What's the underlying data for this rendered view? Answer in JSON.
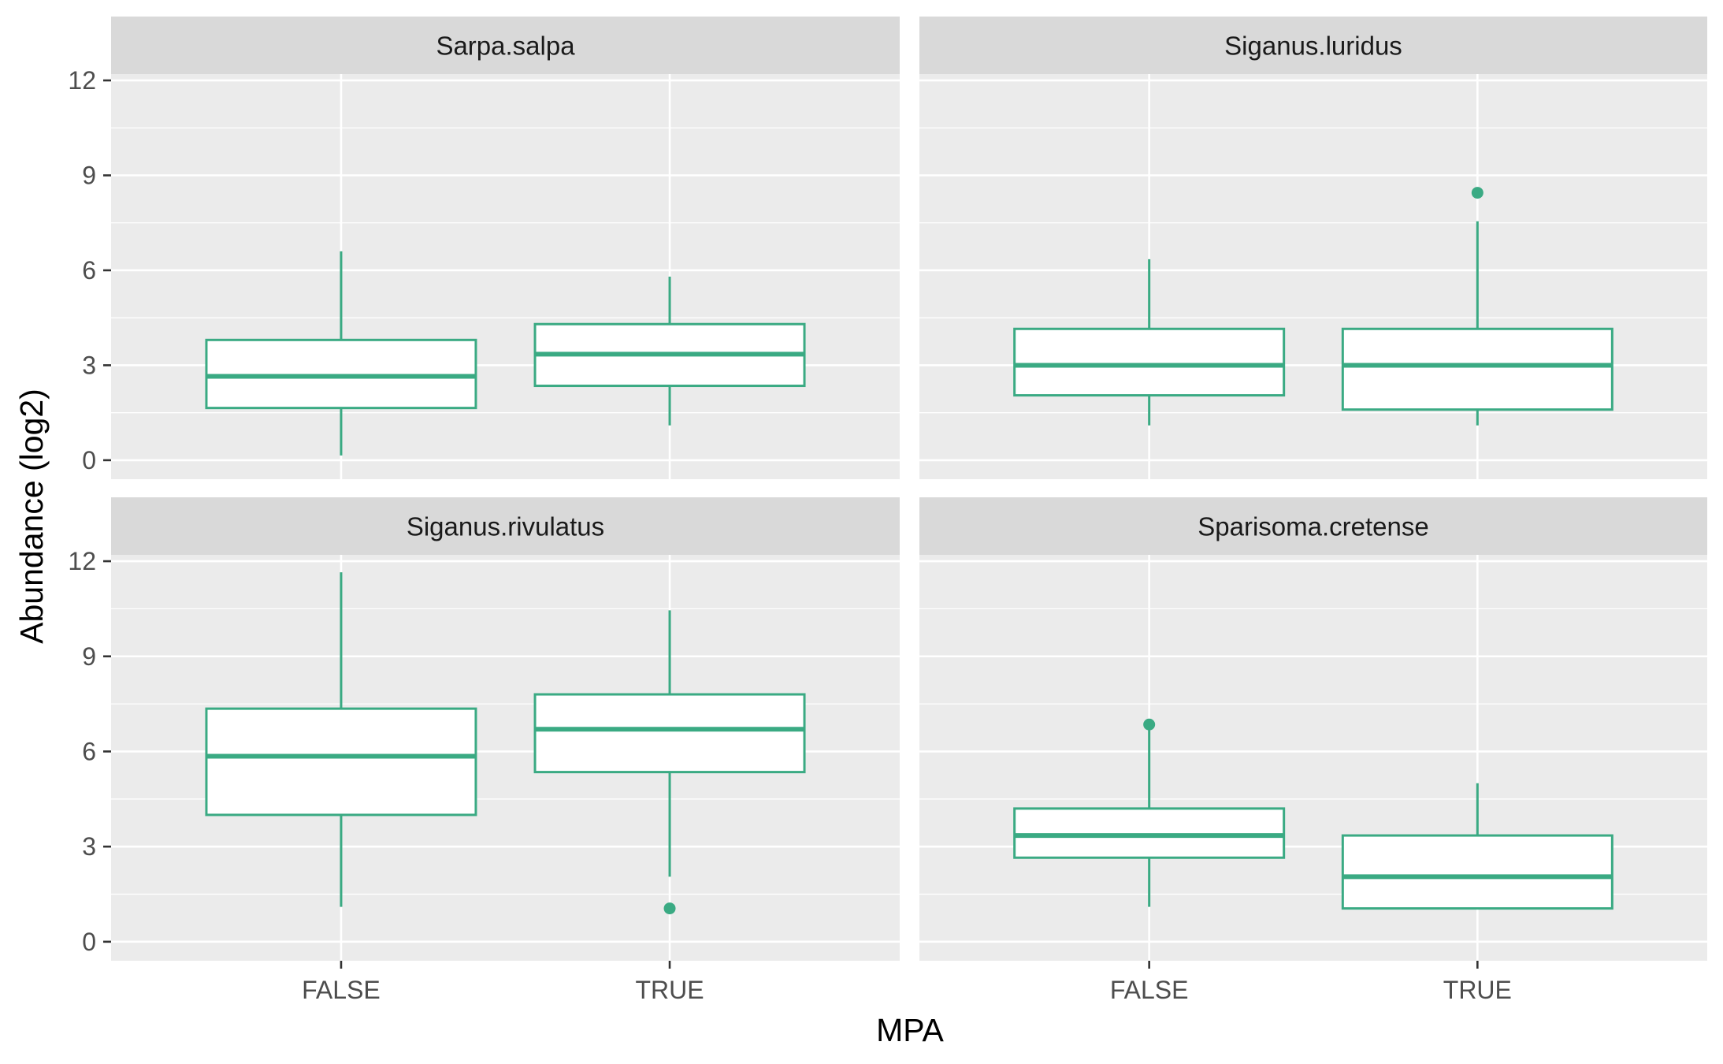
{
  "chart_data": {
    "type": "boxplot",
    "xlabel": "MPA",
    "ylabel": "Abundance (log2)",
    "categories": [
      "FALSE",
      "TRUE"
    ],
    "ylim": [
      -0.6,
      12.2
    ],
    "yticks": [
      0,
      3,
      6,
      9,
      12
    ],
    "color": "#3aaa83",
    "panel_background": "#ebebeb",
    "strip_background": "#d9d9d9",
    "grid": true,
    "panels": [
      {
        "title": "Sarpa.salpa",
        "boxes": [
          {
            "category": "FALSE",
            "whisker_low": 0.15,
            "q1": 1.65,
            "median": 2.65,
            "q3": 3.8,
            "whisker_high": 6.6,
            "outliers": []
          },
          {
            "category": "TRUE",
            "whisker_low": 1.1,
            "q1": 2.35,
            "median": 3.35,
            "q3": 4.3,
            "whisker_high": 5.8,
            "outliers": []
          }
        ]
      },
      {
        "title": "Siganus.luridus",
        "boxes": [
          {
            "category": "FALSE",
            "whisker_low": 1.1,
            "q1": 2.05,
            "median": 3.0,
            "q3": 4.15,
            "whisker_high": 6.35,
            "outliers": []
          },
          {
            "category": "TRUE",
            "whisker_low": 1.1,
            "q1": 1.6,
            "median": 3.0,
            "q3": 4.15,
            "whisker_high": 7.55,
            "outliers": [
              8.45
            ]
          }
        ]
      },
      {
        "title": "Siganus.rivulatus",
        "boxes": [
          {
            "category": "FALSE",
            "whisker_low": 1.1,
            "q1": 4.0,
            "median": 5.85,
            "q3": 7.35,
            "whisker_high": 11.65,
            "outliers": []
          },
          {
            "category": "TRUE",
            "whisker_low": 2.05,
            "q1": 5.35,
            "median": 6.7,
            "q3": 7.8,
            "whisker_high": 10.45,
            "outliers": [
              1.05
            ]
          }
        ]
      },
      {
        "title": "Sparisoma.cretense",
        "boxes": [
          {
            "category": "FALSE",
            "whisker_low": 1.1,
            "q1": 2.65,
            "median": 3.35,
            "q3": 4.2,
            "whisker_high": 6.75,
            "outliers": [
              6.85
            ]
          },
          {
            "category": "TRUE",
            "whisker_low": 1.05,
            "q1": 1.05,
            "median": 2.05,
            "q3": 3.35,
            "whisker_high": 5.0,
            "outliers": []
          }
        ]
      }
    ]
  }
}
